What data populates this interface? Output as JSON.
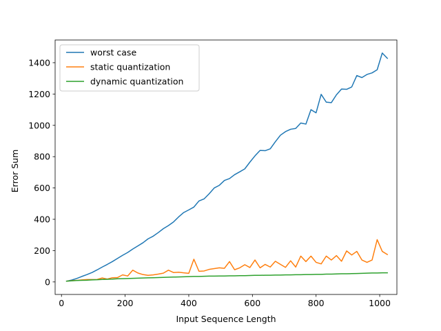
{
  "chart_data": {
    "type": "line",
    "title": "",
    "xlabel": "Input Sequence Length",
    "ylabel": "Error Sum",
    "xlim": [
      -20,
      1054
    ],
    "ylim": [
      -80,
      1545
    ],
    "xticks": [
      0,
      200,
      400,
      600,
      800,
      1000
    ],
    "yticks": [
      0,
      200,
      400,
      600,
      800,
      1000,
      1200,
      1400
    ],
    "grid": false,
    "legend_position": "top-left",
    "x": [
      16,
      32,
      48,
      64,
      80,
      96,
      112,
      128,
      144,
      160,
      176,
      192,
      208,
      224,
      240,
      256,
      272,
      288,
      304,
      320,
      336,
      352,
      368,
      384,
      400,
      416,
      432,
      448,
      464,
      480,
      496,
      512,
      528,
      544,
      560,
      576,
      592,
      608,
      624,
      640,
      656,
      672,
      688,
      704,
      720,
      736,
      752,
      768,
      784,
      800,
      816,
      832,
      848,
      864,
      880,
      896,
      912,
      928,
      944,
      960,
      976,
      992,
      1008,
      1024
    ],
    "series": [
      {
        "name": "worst case",
        "color": "#1f77b4",
        "values": [
          5,
          12,
          22,
          35,
          47,
          60,
          77,
          95,
          112,
          130,
          150,
          170,
          188,
          210,
          230,
          250,
          275,
          292,
          315,
          340,
          360,
          383,
          415,
          443,
          460,
          478,
          517,
          530,
          563,
          600,
          617,
          648,
          660,
          685,
          703,
          722,
          765,
          805,
          840,
          838,
          850,
          895,
          937,
          960,
          975,
          980,
          1015,
          1008,
          1100,
          1080,
          1198,
          1148,
          1145,
          1195,
          1232,
          1230,
          1245,
          1318,
          1305,
          1325,
          1335,
          1355,
          1462,
          1428
        ]
      },
      {
        "name": "static quantization",
        "color": "#ff7f0e",
        "values": [
          5,
          8,
          10,
          13,
          15,
          15,
          16,
          25,
          18,
          27,
          28,
          45,
          38,
          75,
          57,
          47,
          42,
          45,
          50,
          56,
          75,
          60,
          62,
          58,
          55,
          145,
          68,
          70,
          80,
          85,
          90,
          87,
          130,
          78,
          90,
          110,
          92,
          140,
          90,
          112,
          95,
          132,
          112,
          93,
          135,
          95,
          165,
          130,
          165,
          125,
          115,
          165,
          140,
          168,
          132,
          198,
          172,
          195,
          140,
          125,
          140,
          270,
          195,
          175
        ]
      },
      {
        "name": "dynamic quantization",
        "color": "#2ca02c",
        "values": [
          5,
          7,
          9,
          10,
          11,
          13,
          14,
          16,
          17,
          18,
          20,
          21,
          22,
          23,
          24,
          25,
          26,
          27,
          28,
          29,
          30,
          31,
          32,
          33,
          34,
          35,
          35,
          36,
          37,
          37,
          38,
          38,
          39,
          39,
          40,
          40,
          41,
          42,
          42,
          43,
          43,
          44,
          44,
          45,
          45,
          46,
          46,
          47,
          47,
          48,
          48,
          50,
          50,
          51,
          52,
          52,
          53,
          54,
          55,
          56,
          57,
          57,
          58,
          58
        ]
      }
    ]
  }
}
